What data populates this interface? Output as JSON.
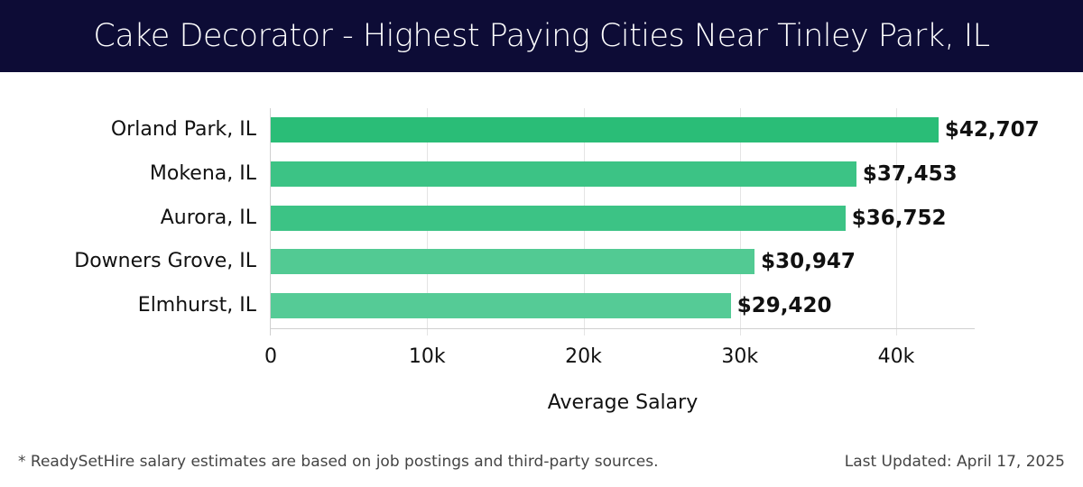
{
  "header": {
    "title": "Cake Decorator - Highest Paying Cities Near Tinley Park, IL"
  },
  "chart_data": {
    "type": "bar",
    "orientation": "horizontal",
    "title": "Cake Decorator - Highest Paying Cities Near Tinley Park, IL",
    "categories": [
      "Orland Park, IL",
      "Mokena, IL",
      "Aurora, IL",
      "Downers Grove, IL",
      "Elmhurst, IL"
    ],
    "values": [
      42707,
      37453,
      36752,
      30947,
      29420
    ],
    "value_labels": [
      "$42,707",
      "$37,453",
      "$36,752",
      "$30,947",
      "$29,420"
    ],
    "colors": [
      "#2abd77",
      "#3cc385",
      "#3cc385",
      "#52ca93",
      "#55cb96"
    ],
    "xlabel": "Average Salary",
    "ylabel": "",
    "xlim": [
      0,
      45000
    ],
    "xticks": [
      0,
      10000,
      20000,
      30000,
      40000
    ],
    "xtick_labels": [
      "0",
      "10k",
      "20k",
      "30k",
      "40k"
    ],
    "grid": true,
    "legend": null
  },
  "footer": {
    "note": "* ReadySetHire salary estimates are based on job postings and third-party sources.",
    "updated": "Last Updated: April 17, 2025"
  }
}
